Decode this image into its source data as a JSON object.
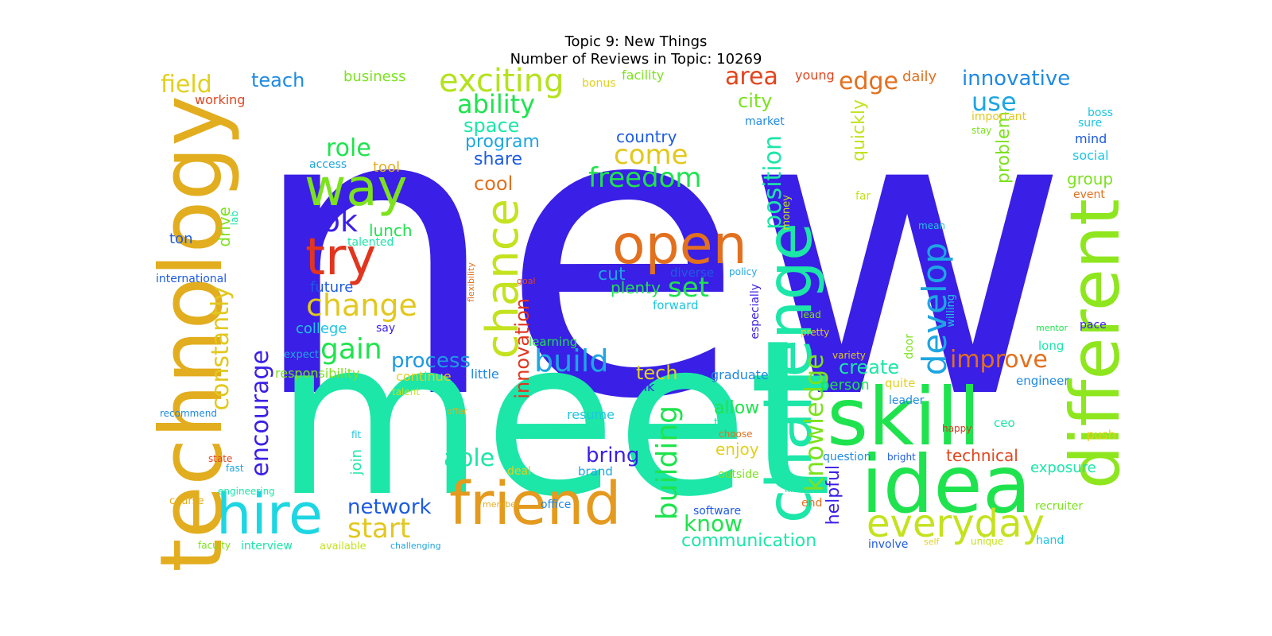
{
  "figure": {
    "title_line1": "Topic 9: New Things",
    "title_line2": "Number of Reviews in Topic: 10269"
  },
  "words": [
    {
      "text": "new",
      "color": "#3a1fe6"
    },
    {
      "text": "meet",
      "color": "#1ce6a8"
    },
    {
      "text": "technology",
      "color": "#e2ad1e"
    },
    {
      "text": "skill",
      "color": "#1fe34e"
    },
    {
      "text": "idea",
      "color": "#1fe34e"
    },
    {
      "text": "different",
      "color": "#8ee61e"
    },
    {
      "text": "challenge",
      "color": "#1ce6a8"
    },
    {
      "text": "friend",
      "color": "#e49a1e"
    },
    {
      "text": "open",
      "color": "#e2701e"
    },
    {
      "text": "hire",
      "color": "#1ed6e2"
    },
    {
      "text": "way",
      "color": "#7ce21e"
    },
    {
      "text": "try",
      "color": "#e2351e"
    },
    {
      "text": "chance",
      "color": "#c4e21e"
    },
    {
      "text": "everyday",
      "color": "#c4e21e"
    },
    {
      "text": "develop",
      "color": "#1ea6e2"
    },
    {
      "text": "exciting",
      "color": "#b4e21e"
    },
    {
      "text": "look",
      "color": "#3a1fe6"
    },
    {
      "text": "change",
      "color": "#e2c81e"
    },
    {
      "text": "building",
      "color": "#1fe34e"
    },
    {
      "text": "freedom",
      "color": "#1fe34e"
    },
    {
      "text": "position",
      "color": "#1ce6a8"
    },
    {
      "text": "knowledge",
      "color": "#7ce21e"
    },
    {
      "text": "build",
      "color": "#1ea6e2"
    },
    {
      "text": "improve",
      "color": "#e2701e"
    },
    {
      "text": "ability",
      "color": "#1fe34e"
    },
    {
      "text": "come",
      "color": "#e2c81e"
    },
    {
      "text": "start",
      "color": "#e2c81e"
    },
    {
      "text": "gain",
      "color": "#1fe34e"
    },
    {
      "text": "encourage",
      "color": "#3a1fe6"
    },
    {
      "text": "constantly",
      "color": "#e2c81e"
    },
    {
      "text": "set",
      "color": "#1fe34e"
    },
    {
      "text": "area",
      "color": "#e2451e"
    },
    {
      "text": "edge",
      "color": "#e2701e"
    },
    {
      "text": "field",
      "color": "#e2d01e"
    },
    {
      "text": "use",
      "color": "#1ea6e2"
    },
    {
      "text": "innovative",
      "color": "#1e8ae2"
    },
    {
      "text": "role",
      "color": "#1fe34e"
    },
    {
      "text": "network",
      "color": "#1e5be2"
    },
    {
      "text": "know",
      "color": "#1fe34e"
    },
    {
      "text": "communication",
      "color": "#1ce6a8"
    },
    {
      "text": "able",
      "color": "#1ce6a8"
    },
    {
      "text": "bring",
      "color": "#3a1fe6"
    },
    {
      "text": "process",
      "color": "#1e9ae2"
    },
    {
      "text": "innovation",
      "color": "#e2351e"
    },
    {
      "text": "create",
      "color": "#1ce6a8"
    },
    {
      "text": "technical",
      "color": "#e2451e"
    },
    {
      "text": "tech",
      "color": "#e2d01e"
    },
    {
      "text": "teach",
      "color": "#1e8ae2"
    },
    {
      "text": "quickly",
      "color": "#c4e21e"
    },
    {
      "text": "problem",
      "color": "#7ce21e"
    },
    {
      "text": "helpful",
      "color": "#3a1fe6"
    },
    {
      "text": "allow",
      "color": "#1fe34e"
    },
    {
      "text": "city",
      "color": "#7ce21e"
    },
    {
      "text": "space",
      "color": "#1ce6a8"
    },
    {
      "text": "program",
      "color": "#1ea6e2"
    },
    {
      "text": "cool",
      "color": "#e2701e"
    },
    {
      "text": "share",
      "color": "#1e5be2"
    },
    {
      "text": "country",
      "color": "#1e5be2"
    },
    {
      "text": "cut",
      "color": "#1ea6e2"
    },
    {
      "text": "plenty",
      "color": "#1fe34e"
    },
    {
      "text": "exposure",
      "color": "#1ce6a8"
    },
    {
      "text": "person",
      "color": "#1fe34e"
    },
    {
      "text": "group",
      "color": "#7ce21e"
    },
    {
      "text": "lunch",
      "color": "#1fe34e"
    },
    {
      "text": "drive",
      "color": "#7ce21e"
    },
    {
      "text": "join",
      "color": "#1ce6a8"
    },
    {
      "text": "enjoy",
      "color": "#e2d01e"
    },
    {
      "text": "business",
      "color": "#7ce21e"
    },
    {
      "text": "facility",
      "color": "#7ce21e"
    },
    {
      "text": "daily",
      "color": "#e2701e"
    },
    {
      "text": "young",
      "color": "#e2451e"
    },
    {
      "text": "working",
      "color": "#e2451e"
    },
    {
      "text": "bonus",
      "color": "#e2d01e"
    },
    {
      "text": "boss",
      "color": "#1ec6e2"
    },
    {
      "text": "important",
      "color": "#e2c81e"
    },
    {
      "text": "sure",
      "color": "#1ec6e2"
    },
    {
      "text": "stay",
      "color": "#7ce21e"
    },
    {
      "text": "mind",
      "color": "#1e5be2"
    },
    {
      "text": "social",
      "color": "#1ec6e2"
    },
    {
      "text": "event",
      "color": "#e2701e"
    },
    {
      "text": "market",
      "color": "#1e8ae2"
    },
    {
      "text": "tool",
      "color": "#e2ad1e"
    },
    {
      "text": "access",
      "color": "#1ea6e2"
    },
    {
      "text": "talented",
      "color": "#1ce6a8"
    },
    {
      "text": "ton",
      "color": "#1e5be2"
    },
    {
      "text": "lab",
      "color": "#1ce6a8"
    },
    {
      "text": "international",
      "color": "#1e5be2"
    },
    {
      "text": "future",
      "color": "#1e5be2"
    },
    {
      "text": "college",
      "color": "#1ec6e2"
    },
    {
      "text": "say",
      "color": "#3a1fe6"
    },
    {
      "text": "expect",
      "color": "#1ea6e2"
    },
    {
      "text": "responsibility",
      "color": "#7ce21e"
    },
    {
      "text": "continue",
      "color": "#e2d01e"
    },
    {
      "text": "little",
      "color": "#1e8ae2"
    },
    {
      "text": "talent",
      "color": "#c4e21e"
    },
    {
      "text": "think",
      "color": "#3a1fe6"
    },
    {
      "text": "graduate",
      "color": "#1e8ae2"
    },
    {
      "text": "learning",
      "color": "#1fe34e"
    },
    {
      "text": "flexibility",
      "color": "#e2701e"
    },
    {
      "text": "goal",
      "color": "#e2451e"
    },
    {
      "text": "diverse",
      "color": "#1e5be2"
    },
    {
      "text": "policy",
      "color": "#1ea6e2"
    },
    {
      "text": "forward",
      "color": "#1ec6e2"
    },
    {
      "text": "money",
      "color": "#c4e21e"
    },
    {
      "text": "far",
      "color": "#c4e21e"
    },
    {
      "text": "mean",
      "color": "#1ec6e2"
    },
    {
      "text": "lead",
      "color": "#7ce21e"
    },
    {
      "text": "especially",
      "color": "#3a1fe6"
    },
    {
      "text": "pretty",
      "color": "#e2d01e"
    },
    {
      "text": "willing",
      "color": "#1ec6e2"
    },
    {
      "text": "door",
      "color": "#7ce21e"
    },
    {
      "text": "variety",
      "color": "#e2c81e"
    },
    {
      "text": "mentor",
      "color": "#1fe34e"
    },
    {
      "text": "pace",
      "color": "#3a1fe6"
    },
    {
      "text": "long",
      "color": "#1ce6a8"
    },
    {
      "text": "quite",
      "color": "#e2d01e"
    },
    {
      "text": "leader",
      "color": "#1e8ae2"
    },
    {
      "text": "engineer",
      "color": "#1e8ae2"
    },
    {
      "text": "resume",
      "color": "#1ec6e2"
    },
    {
      "text": "ceo",
      "color": "#1ce6a8"
    },
    {
      "text": "happy",
      "color": "#e2351e"
    },
    {
      "text": "push",
      "color": "#e2d01e"
    },
    {
      "text": "talk",
      "color": "#1ce6a8"
    },
    {
      "text": "choose",
      "color": "#e2701e"
    },
    {
      "text": "question",
      "color": "#1e8ae2"
    },
    {
      "text": "bright",
      "color": "#1e5be2"
    },
    {
      "text": "recommend",
      "color": "#1e8ae2"
    },
    {
      "text": "fit",
      "color": "#1ec6e2"
    },
    {
      "text": "offer",
      "color": "#e2ad1e"
    },
    {
      "text": "deal",
      "color": "#e2d01e"
    },
    {
      "text": "brand",
      "color": "#1ea6e2"
    },
    {
      "text": "outside",
      "color": "#7ce21e"
    },
    {
      "text": "kind",
      "color": "#1ce6a8"
    },
    {
      "text": "end",
      "color": "#e2701e"
    },
    {
      "text": "state",
      "color": "#e2451e"
    },
    {
      "text": "fast",
      "color": "#1ea6e2"
    },
    {
      "text": "engineering",
      "color": "#1ce6a8"
    },
    {
      "text": "course",
      "color": "#e2ad1e"
    },
    {
      "text": "member",
      "color": "#e2ad1e"
    },
    {
      "text": "office",
      "color": "#1e8ae2"
    },
    {
      "text": "software",
      "color": "#1e5be2"
    },
    {
      "text": "recruiter",
      "color": "#7ce21e"
    },
    {
      "text": "faculty",
      "color": "#7ce21e"
    },
    {
      "text": "interview",
      "color": "#1ce6a8"
    },
    {
      "text": "available",
      "color": "#c4e21e"
    },
    {
      "text": "challenging",
      "color": "#1ea6e2"
    },
    {
      "text": "involve",
      "color": "#1e5be2"
    },
    {
      "text": "self",
      "color": "#e2d01e"
    },
    {
      "text": "unique",
      "color": "#c4e21e"
    },
    {
      "text": "hand",
      "color": "#1ec6e2"
    }
  ]
}
